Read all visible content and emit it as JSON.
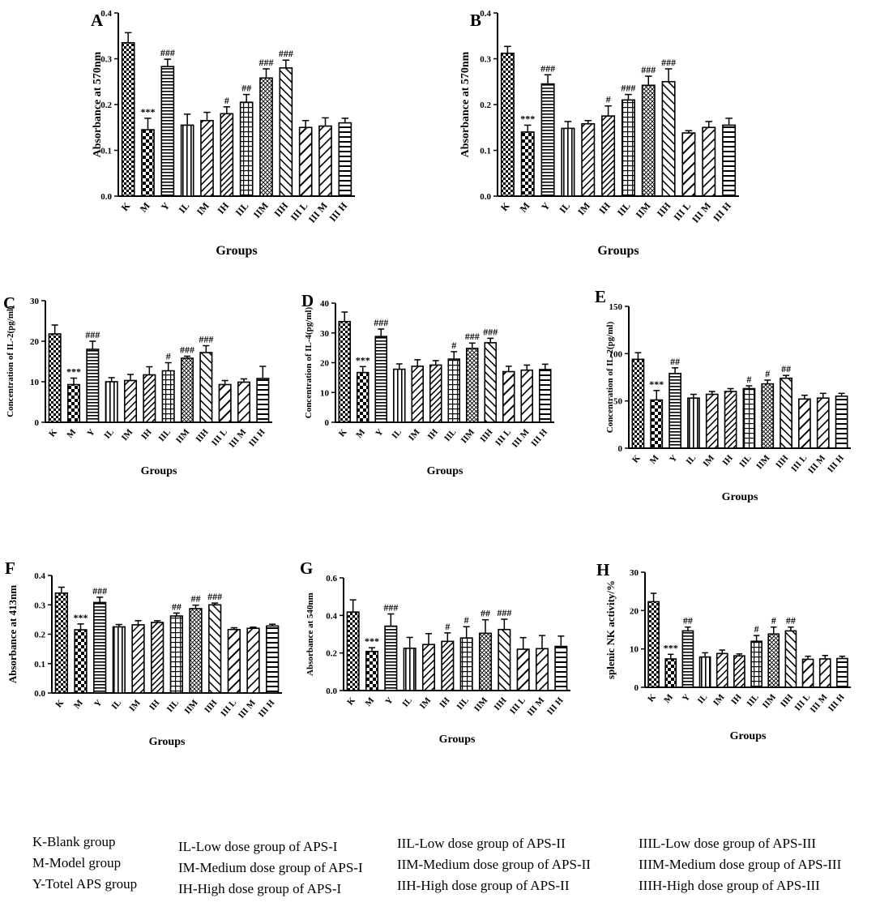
{
  "colors": {
    "ink": "#000000",
    "background": "#ffffff"
  },
  "chart_data": [
    {
      "panel": "A",
      "type": "bar",
      "xlabel": "Groups",
      "ylabel": "Absorbance at 570nm",
      "ylim": [
        0,
        0.4
      ],
      "yticks": [
        0.0,
        0.1,
        0.2,
        0.3,
        0.4
      ],
      "tick_format": "1",
      "categories": [
        "K",
        "M",
        "Y",
        "IL",
        "IM",
        "IH",
        "IIL",
        "IIM",
        "IIH",
        "III L",
        "III M",
        "III H"
      ],
      "values": [
        0.335,
        0.145,
        0.283,
        0.155,
        0.165,
        0.18,
        0.205,
        0.258,
        0.28,
        0.15,
        0.153,
        0.16
      ],
      "errors": [
        0.022,
        0.025,
        0.016,
        0.024,
        0.018,
        0.015,
        0.017,
        0.02,
        0.017,
        0.015,
        0.018,
        0.01
      ],
      "annotations": [
        "",
        "***",
        "###",
        "",
        "",
        "#",
        "##",
        "###",
        "###",
        "",
        "",
        ""
      ]
    },
    {
      "panel": "B",
      "type": "bar",
      "xlabel": "Groups",
      "ylabel": "Absorbance at 570nm",
      "ylim": [
        0,
        0.4
      ],
      "yticks": [
        0.0,
        0.1,
        0.2,
        0.3,
        0.4
      ],
      "tick_format": "1",
      "categories": [
        "K",
        "M",
        "Y",
        "IL",
        "IM",
        "IH",
        "IIL",
        "IIM",
        "IIH",
        "III L",
        "III M",
        "III H"
      ],
      "values": [
        0.312,
        0.14,
        0.245,
        0.148,
        0.158,
        0.175,
        0.21,
        0.242,
        0.25,
        0.138,
        0.15,
        0.155
      ],
      "errors": [
        0.015,
        0.015,
        0.02,
        0.015,
        0.007,
        0.022,
        0.012,
        0.02,
        0.028,
        0.005,
        0.013,
        0.015
      ],
      "annotations": [
        "",
        "***",
        "###",
        "",
        "",
        "#",
        "###",
        "###",
        "###",
        "",
        "",
        ""
      ]
    },
    {
      "panel": "C",
      "type": "bar",
      "xlabel": "Groups",
      "ylabel": "Concentration of IL-2(pg/ml)",
      "ylim": [
        0,
        30
      ],
      "yticks": [
        0,
        10,
        20,
        30
      ],
      "tick_format": "0",
      "categories": [
        "K",
        "M",
        "Y",
        "IL",
        "IM",
        "IH",
        "IIL",
        "IIM",
        "IIH",
        "III L",
        "III M",
        "III H"
      ],
      "values": [
        21.8,
        9.3,
        18.0,
        10.0,
        10.3,
        11.7,
        12.7,
        15.8,
        17.2,
        9.3,
        9.9,
        10.8
      ],
      "errors": [
        2.2,
        1.6,
        2.0,
        1.0,
        1.5,
        2.0,
        2.0,
        0.5,
        1.7,
        1.0,
        0.8,
        3.0
      ],
      "annotations": [
        "",
        "***",
        "###",
        "",
        "",
        "",
        "#",
        "###",
        "###",
        "",
        "",
        ""
      ]
    },
    {
      "panel": "D",
      "type": "bar",
      "xlabel": "Groups",
      "ylabel": "Concentration of IL-4(pg/ml)",
      "ylim": [
        0,
        40
      ],
      "yticks": [
        0,
        10,
        20,
        30,
        40
      ],
      "tick_format": "0",
      "categories": [
        "K",
        "M",
        "Y",
        "IL",
        "IM",
        "IH",
        "IIL",
        "IIM",
        "IIH",
        "III L",
        "III M",
        "III H"
      ],
      "values": [
        33.8,
        16.7,
        28.8,
        17.8,
        18.8,
        19.2,
        21.2,
        24.8,
        26.7,
        17.0,
        17.5,
        17.7
      ],
      "errors": [
        3.2,
        2.0,
        2.5,
        1.8,
        2.2,
        1.5,
        2.5,
        1.8,
        1.5,
        1.8,
        1.7,
        1.8
      ],
      "annotations": [
        "",
        "***",
        "###",
        "",
        "",
        "",
        "#",
        "###",
        "###",
        "",
        "",
        ""
      ]
    },
    {
      "panel": "E",
      "type": "bar",
      "xlabel": "Groups",
      "ylabel": "Concentration of IL-2(pg/ml)",
      "ylim": [
        0,
        150
      ],
      "yticks": [
        0,
        50,
        100,
        150
      ],
      "tick_format": "0",
      "categories": [
        "K",
        "M",
        "Y",
        "IL",
        "IM",
        "IH",
        "IIL",
        "IIM",
        "IIH",
        "III L",
        "III M",
        "III H"
      ],
      "values": [
        94,
        51,
        79,
        53,
        57,
        60,
        63,
        68,
        74,
        52,
        53,
        55
      ],
      "errors": [
        7,
        10,
        6,
        4,
        3,
        3,
        3,
        4,
        3,
        4,
        5,
        3
      ],
      "annotations": [
        "",
        "***",
        "##",
        "",
        "",
        "",
        "#",
        "#",
        "##",
        "",
        "",
        ""
      ]
    },
    {
      "panel": "F",
      "type": "bar",
      "xlabel": "Groups",
      "ylabel": "Absorbance at 413nm",
      "ylim": [
        0,
        0.4
      ],
      "yticks": [
        0.0,
        0.1,
        0.2,
        0.3,
        0.4
      ],
      "tick_format": "1",
      "categories": [
        "K",
        "M",
        "Y",
        "IL",
        "IM",
        "IH",
        "IIL",
        "IIM",
        "IIH",
        "III L",
        "III M",
        "III H"
      ],
      "values": [
        0.34,
        0.215,
        0.308,
        0.225,
        0.232,
        0.24,
        0.262,
        0.287,
        0.3,
        0.216,
        0.22,
        0.228
      ],
      "errors": [
        0.02,
        0.02,
        0.018,
        0.008,
        0.014,
        0.006,
        0.01,
        0.012,
        0.006,
        0.006,
        0.004,
        0.006
      ],
      "annotations": [
        "",
        "***",
        "###",
        "",
        "",
        "",
        "##",
        "##",
        "###",
        "",
        "",
        ""
      ]
    },
    {
      "panel": "G",
      "type": "bar",
      "xlabel": "Groups",
      "ylabel": "Absorbance at 540nm",
      "ylim": [
        0,
        0.6
      ],
      "yticks": [
        0.0,
        0.2,
        0.4,
        0.6
      ],
      "tick_format": "1",
      "categories": [
        "K",
        "M",
        "Y",
        "IL",
        "IM",
        "IH",
        "IIL",
        "IIM",
        "IIH",
        "III L",
        "III M",
        "III H"
      ],
      "values": [
        0.418,
        0.208,
        0.343,
        0.225,
        0.245,
        0.262,
        0.28,
        0.305,
        0.325,
        0.22,
        0.223,
        0.235
      ],
      "errors": [
        0.065,
        0.02,
        0.065,
        0.058,
        0.058,
        0.045,
        0.06,
        0.072,
        0.055,
        0.062,
        0.07,
        0.055
      ],
      "annotations": [
        "",
        "***",
        "###",
        "",
        "",
        "#",
        "#",
        "##",
        "###",
        "",
        "",
        ""
      ]
    },
    {
      "panel": "H",
      "type": "bar",
      "xlabel": "Groups",
      "ylabel": "splenic NK activity/%",
      "ylim": [
        0,
        30
      ],
      "yticks": [
        0,
        10,
        20,
        30
      ],
      "tick_format": "0",
      "categories": [
        "K",
        "M",
        "Y",
        "IL",
        "IM",
        "IH",
        "IIL",
        "IIM",
        "IIH",
        "III L",
        "III M",
        "III H"
      ],
      "values": [
        22.3,
        7.4,
        14.7,
        7.9,
        8.8,
        8.2,
        12.0,
        13.9,
        14.7,
        7.3,
        7.4,
        7.5
      ],
      "errors": [
        2.2,
        1.2,
        1.0,
        1.1,
        0.9,
        0.5,
        1.5,
        1.8,
        1.0,
        0.8,
        0.9,
        0.6
      ],
      "annotations": [
        "",
        "***",
        "##",
        "",
        "",
        "",
        "#",
        "#",
        "##",
        "",
        "",
        ""
      ]
    }
  ],
  "legend": {
    "columns": [
      [
        "K-Blank group",
        "M-Model group",
        "Y-Totel APS group"
      ],
      [
        "IL-Low dose group of APS-I",
        "IM-Medium dose group of APS-I",
        "IH-High dose group of APS-I"
      ],
      [
        "IIL-Low dose group of APS-II",
        "IIM-Medium dose group of APS-II",
        "IIH-High dose group of APS-II"
      ],
      [
        "IIIL-Low dose group of APS-III",
        "IIIM-Medium dose group of APS-III",
        "IIIH-High dose group of APS-III"
      ]
    ]
  }
}
